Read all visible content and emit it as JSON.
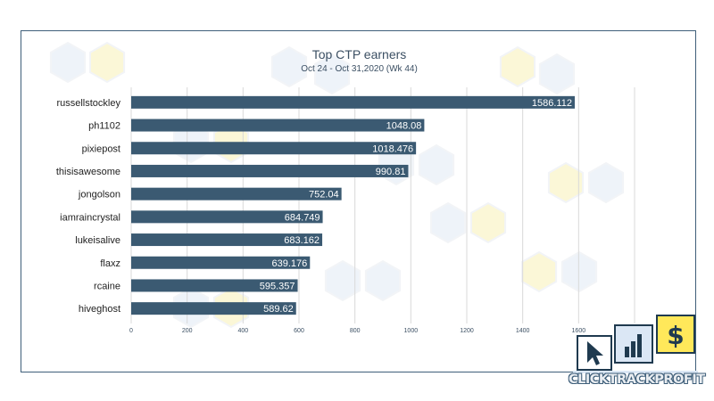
{
  "chart_data": {
    "type": "bar",
    "orientation": "horizontal",
    "title": "Top CTP earners",
    "subtitle": "Oct 24 - Oct 31,2020 (Wk 44)",
    "categories": [
      "russellstockley",
      "ph1102",
      "pixiepost",
      "thisisawesome",
      "jongolson",
      "iamraincrystal",
      "lukeisalive",
      "flaxz",
      "rcaine",
      "hiveghost"
    ],
    "values": [
      1586.112,
      1048.08,
      1018.476,
      990.81,
      752.04,
      684.749,
      683.162,
      639.176,
      595.357,
      589.62
    ],
    "value_labels": [
      "1586.112",
      "1048.08",
      "1018.476",
      "990.81",
      "752.04",
      "684.749",
      "683.162",
      "639.176",
      "595.357",
      "589.62"
    ],
    "xlim": [
      0,
      1800
    ],
    "xticks": [
      "0",
      "200",
      "400",
      "600",
      "800",
      "1000",
      "1200",
      "1400",
      "1600",
      "1800"
    ],
    "grid": "vertical",
    "bar_color": "#3b5a72",
    "label_color": "#ffffff",
    "text_color": "#3b4f63",
    "grid_color": "#d9d9d9"
  },
  "logo": {
    "text": "CLICKTRACKPROFIT",
    "icons": [
      "cursor-icon",
      "bar-chart-icon",
      "dollar-icon"
    ],
    "colors": {
      "navy": "#1f3a4f",
      "yellow": "#ffe85a",
      "light_blue": "#dbe7f5"
    }
  }
}
